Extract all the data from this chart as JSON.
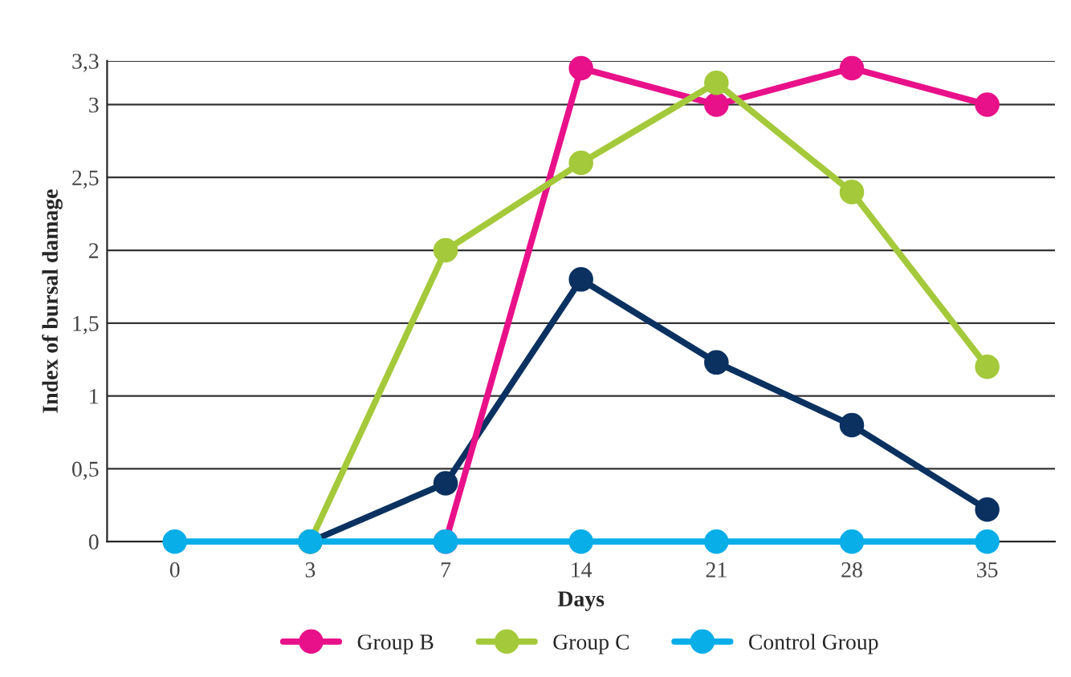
{
  "chart_data": {
    "type": "line",
    "xlabel": "Days",
    "ylabel": "Index of bursal damage",
    "categories": [
      "0",
      "3",
      "7",
      "14",
      "21",
      "28",
      "35"
    ],
    "series": [
      {
        "color": "#0a3160",
        "values": [
          null,
          0,
          0.4,
          1.8,
          1.23,
          0.8,
          0.22
        ]
      },
      {
        "name": "Group B",
        "color": "#e8118a",
        "values": [
          null,
          null,
          0,
          3.25,
          3.0,
          3.25,
          3.0
        ]
      },
      {
        "name": "Group C",
        "color": "#a4c93a",
        "values": [
          null,
          0,
          2.0,
          2.6,
          3.15,
          2.4,
          1.2
        ]
      },
      {
        "name": "Control Group",
        "color": "#08aee8",
        "values": [
          0,
          0,
          0,
          0,
          0,
          0,
          0
        ]
      }
    ],
    "ylim": [
      0,
      3.3
    ],
    "yticks": [
      {
        "value": 0,
        "label": "0"
      },
      {
        "value": 0.5,
        "label": "0,5"
      },
      {
        "value": 1,
        "label": "1"
      },
      {
        "value": 1.5,
        "label": "1,5"
      },
      {
        "value": 2,
        "label": "2"
      },
      {
        "value": 2.5,
        "label": "2,5"
      },
      {
        "value": 3,
        "label": "3"
      },
      {
        "value": 3.3,
        "label": "3,3"
      }
    ],
    "grid": "y",
    "legend": "bottom",
    "marker": "circle",
    "line_style": "solid"
  }
}
